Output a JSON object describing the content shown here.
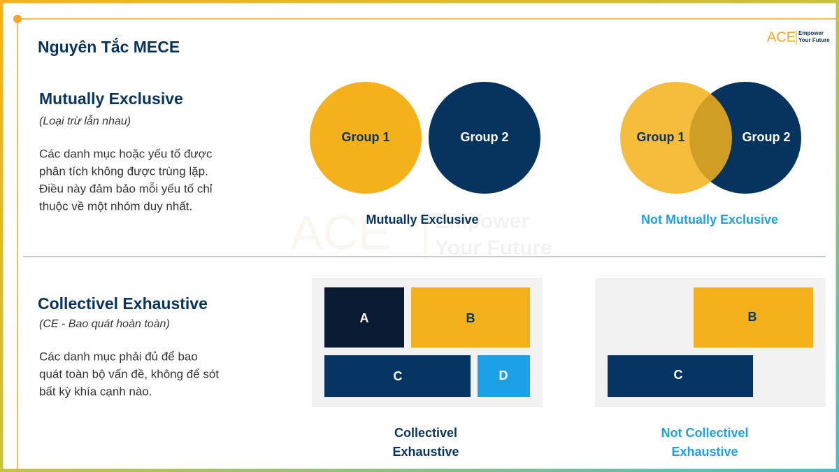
{
  "header": {
    "title": "Nguyên Tắc MECE",
    "logo": {
      "mark": "ACE",
      "line1": "Empower",
      "line2": "Your Future"
    }
  },
  "mutually_exclusive": {
    "heading": "Mutually Exclusive",
    "subtitle": "(Loại trừ lẫn nhau)",
    "body": [
      "Các danh mục hoặc yếu tố được",
      "phân tích không được trùng lặp.",
      "Điều này đảm bảo mỗi yếu tố chỉ",
      "thuộc về một nhóm duy nhất."
    ],
    "examples": [
      {
        "caption": "Mutually Exclusive",
        "groups": [
          "Group 1",
          "Group 2"
        ]
      },
      {
        "caption": "Not Mutually Exclusive",
        "groups": [
          "Group 1",
          "Group 2"
        ]
      }
    ]
  },
  "collectively_exhaustive": {
    "heading": "Collectivel Exhaustive",
    "subtitle": "(CE - Bao quát hoàn toàn)",
    "body": [
      "Các danh mục phải đủ để bao",
      "quát toàn bộ vấn đề, không để sót",
      "bất kỳ khía cạnh nào."
    ],
    "examples": [
      {
        "caption": [
          "Collectivel",
          "Exhaustive"
        ],
        "boxes": [
          "A",
          "B",
          "C",
          "D"
        ]
      },
      {
        "caption": [
          "Not Collectivel",
          "Exhaustive"
        ],
        "boxes": [
          "B",
          "C"
        ]
      }
    ]
  }
}
